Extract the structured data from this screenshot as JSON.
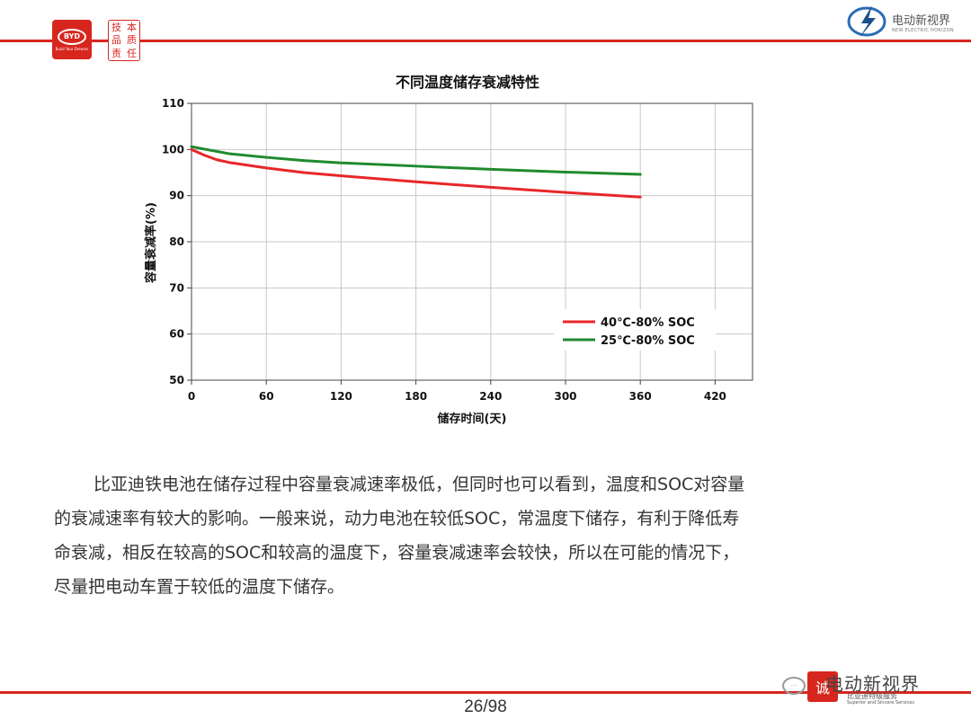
{
  "header": {
    "byd_logo_text": "BYD",
    "byd_tagline": "Build Your Dreams",
    "seal_chars": [
      "技",
      "本",
      "品",
      "质",
      "责",
      "任"
    ],
    "brand_right": "电动新视界",
    "brand_right_sub": "NEW ELECTRIC HORIZON"
  },
  "chart_data": {
    "type": "line",
    "title": "不同温度储存衰减特性",
    "xlabel": "储存时间(天)",
    "ylabel": "容量衰减率(%)",
    "xlim": [
      0,
      450
    ],
    "ylim": [
      50,
      110
    ],
    "xticks": [
      0,
      60,
      120,
      180,
      240,
      300,
      360,
      420
    ],
    "yticks": [
      50,
      60,
      70,
      80,
      90,
      100,
      110
    ],
    "grid": true,
    "legend_position": "bottom-right",
    "series": [
      {
        "name": "40℃-80% SOC",
        "color": "#e8262a",
        "x": [
          0,
          10,
          20,
          30,
          60,
          90,
          120,
          180,
          240,
          300,
          360
        ],
        "y": [
          100,
          98.8,
          97.8,
          97.2,
          96,
          95.0,
          94.3,
          93,
          91.8,
          90.7,
          89.7
        ]
      },
      {
        "name": "25℃-80% SOC",
        "color": "#1f8a2d",
        "x": [
          0,
          10,
          20,
          30,
          60,
          90,
          120,
          180,
          240,
          300,
          360
        ],
        "y": [
          100.6,
          100.1,
          99.6,
          99.1,
          98.3,
          97.6,
          97.1,
          96.4,
          95.7,
          95.1,
          94.6
        ]
      }
    ]
  },
  "body": {
    "paragraph_lines": [
      "比亚迪铁电池在储存过程中容量衰减速率极低，但同时也可以看到，温度和SOC对容量",
      "的衰减速率有较大的影响。一般来说，动力电池在较低SOC，常温度下储存，有利于降低寿",
      "命衰减，相反在较高的SOC和较高的温度下，容量衰减速率会较快，所以在可能的情况下，",
      "尽量把电动车置于较低的温度下储存。"
    ]
  },
  "footer": {
    "page_number": "26/98",
    "watermark_text": "电动新视界",
    "watermark_stamp": "诚",
    "watermark_sub1": "比亚迪特级服务",
    "watermark_sub2": "Superior and Sincere Services"
  },
  "colors": {
    "accent_red": "#d7261e"
  }
}
